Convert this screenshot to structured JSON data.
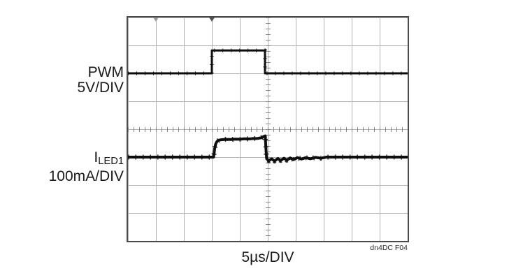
{
  "figure": {
    "channel1": {
      "name": "PWM",
      "scale": "5V/DIV"
    },
    "channel2": {
      "name_main": "I",
      "name_sub": "LED1",
      "scale": "100mA/DIV"
    },
    "timebase": "5µs/DIV",
    "figure_id": "dn4DC F04"
  },
  "colors": {
    "trace": "#0e0e0e",
    "gridline": "#b3b3b3",
    "border": "#4a4a4a",
    "tick": "#878787",
    "background": "#ffffff"
  },
  "icons": {
    "trigger_marker_left": "small gray down-triangle at top of graticule",
    "trigger_marker_right": "small dark down-triangle at top of graticule"
  },
  "chart_data": {
    "type": "line",
    "title": "PWM dimming waveform: PWM input and LED current",
    "xlabel": "5µs/DIV",
    "x_units": "µs",
    "x_range": [
      0,
      50
    ],
    "x_divisions": 10,
    "y_divisions": 8,
    "grid": true,
    "legend_position": "left-margin channel labels",
    "series": [
      {
        "name": "PWM",
        "units": "V",
        "scale_per_div": 5,
        "baseline_div_from_bottom": 6,
        "points": [
          [
            0,
            0
          ],
          [
            15,
            0
          ],
          [
            15,
            4.1
          ],
          [
            24.5,
            4.1
          ],
          [
            24.5,
            0
          ],
          [
            50,
            0
          ]
        ]
      },
      {
        "name": "ILED1",
        "units": "mA",
        "scale_per_div": 100,
        "baseline_div_from_bottom": 3,
        "points": [
          [
            0,
            0
          ],
          [
            15.3,
            0
          ],
          [
            15.35,
            5
          ],
          [
            15.5,
            30
          ],
          [
            15.7,
            48
          ],
          [
            15.95,
            57
          ],
          [
            16.3,
            61
          ],
          [
            16.8,
            62.5
          ],
          [
            17.5,
            63.5
          ],
          [
            18.4,
            63
          ],
          [
            19.2,
            64.5
          ],
          [
            20,
            64
          ],
          [
            20.8,
            65.5
          ],
          [
            21.6,
            65
          ],
          [
            22.4,
            66.5
          ],
          [
            23.2,
            67
          ],
          [
            23.8,
            69
          ],
          [
            24.3,
            74
          ],
          [
            24.55,
            76
          ],
          [
            24.7,
            20
          ],
          [
            24.8,
            -6
          ],
          [
            25.2,
            -13
          ],
          [
            25.7,
            -6
          ],
          [
            26.2,
            -14
          ],
          [
            26.8,
            -5
          ],
          [
            27.3,
            -12
          ],
          [
            27.9,
            -4
          ],
          [
            28.4,
            -11
          ],
          [
            29,
            -3
          ],
          [
            29.6,
            -9
          ],
          [
            30.3,
            -2
          ],
          [
            31,
            -7
          ],
          [
            31.8,
            -2
          ],
          [
            32.6,
            -6
          ],
          [
            33.5,
            -1
          ],
          [
            34.5,
            -4
          ],
          [
            35.5,
            0
          ],
          [
            50,
            0
          ]
        ]
      }
    ]
  }
}
